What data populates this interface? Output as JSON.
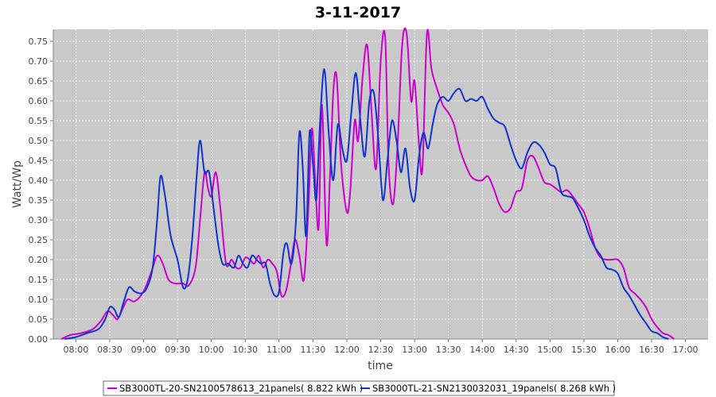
{
  "chart_data": {
    "type": "line",
    "title": "3-11-2017",
    "xlabel": "time",
    "ylabel": "Watt/Wp",
    "ylim": [
      0,
      0.78
    ],
    "yticks": [
      "0.00",
      "0.05",
      "0.10",
      "0.15",
      "0.20",
      "0.25",
      "0.30",
      "0.35",
      "0.40",
      "0.45",
      "0.50",
      "0.55",
      "0.60",
      "0.65",
      "0.70",
      "0.75"
    ],
    "xticks": [
      "08:00",
      "08:30",
      "09:00",
      "09:30",
      "10:00",
      "10:30",
      "11:00",
      "11:30",
      "12:00",
      "12:30",
      "13:00",
      "13:30",
      "14:00",
      "14:30",
      "15:00",
      "15:30",
      "16:00",
      "16:30",
      "17:00"
    ],
    "grid": true,
    "legend_position": "bottom",
    "series": [
      {
        "name": "SB3000TL-20-SN2100578613_21panels( 8.822 kWh )",
        "color": "#cc00cc",
        "points": [
          [
            "07:47",
            0.0
          ],
          [
            "07:55",
            0.01
          ],
          [
            "08:05",
            0.015
          ],
          [
            "08:15",
            0.025
          ],
          [
            "08:22",
            0.045
          ],
          [
            "08:28",
            0.07
          ],
          [
            "08:33",
            0.06
          ],
          [
            "08:37",
            0.05
          ],
          [
            "08:42",
            0.08
          ],
          [
            "08:46",
            0.1
          ],
          [
            "08:52",
            0.095
          ],
          [
            "09:00",
            0.12
          ],
          [
            "09:07",
            0.17
          ],
          [
            "09:12",
            0.21
          ],
          [
            "09:17",
            0.19
          ],
          [
            "09:22",
            0.15
          ],
          [
            "09:28",
            0.14
          ],
          [
            "09:35",
            0.14
          ],
          [
            "09:40",
            0.135
          ],
          [
            "09:46",
            0.18
          ],
          [
            "09:50",
            0.3
          ],
          [
            "09:54",
            0.42
          ],
          [
            "09:57",
            0.38
          ],
          [
            "10:00",
            0.36
          ],
          [
            "10:04",
            0.42
          ],
          [
            "10:08",
            0.33
          ],
          [
            "10:13",
            0.19
          ],
          [
            "10:18",
            0.2
          ],
          [
            "10:22",
            0.18
          ],
          [
            "10:26",
            0.18
          ],
          [
            "10:30",
            0.205
          ],
          [
            "10:34",
            0.2
          ],
          [
            "10:38",
            0.19
          ],
          [
            "10:42",
            0.21
          ],
          [
            "10:46",
            0.18
          ],
          [
            "10:50",
            0.2
          ],
          [
            "10:54",
            0.19
          ],
          [
            "10:58",
            0.17
          ],
          [
            "11:02",
            0.11
          ],
          [
            "11:06",
            0.12
          ],
          [
            "11:10",
            0.18
          ],
          [
            "11:14",
            0.25
          ],
          [
            "11:18",
            0.21
          ],
          [
            "11:22",
            0.15
          ],
          [
            "11:26",
            0.33
          ],
          [
            "11:29",
            0.53
          ],
          [
            "11:32",
            0.4
          ],
          [
            "11:35",
            0.28
          ],
          [
            "11:38",
            0.59
          ],
          [
            "11:42",
            0.24
          ],
          [
            "11:45",
            0.4
          ],
          [
            "11:48",
            0.62
          ],
          [
            "11:51",
            0.66
          ],
          [
            "11:55",
            0.44
          ],
          [
            "12:00",
            0.32
          ],
          [
            "12:03",
            0.37
          ],
          [
            "12:07",
            0.55
          ],
          [
            "12:10",
            0.5
          ],
          [
            "12:14",
            0.66
          ],
          [
            "12:18",
            0.74
          ],
          [
            "12:22",
            0.57
          ],
          [
            "12:26",
            0.43
          ],
          [
            "12:30",
            0.7
          ],
          [
            "12:34",
            0.76
          ],
          [
            "12:37",
            0.44
          ],
          [
            "12:41",
            0.34
          ],
          [
            "12:45",
            0.49
          ],
          [
            "12:49",
            0.74
          ],
          [
            "12:53",
            0.77
          ],
          [
            "12:57",
            0.6
          ],
          [
            "13:00",
            0.65
          ],
          [
            "13:04",
            0.49
          ],
          [
            "13:07",
            0.43
          ],
          [
            "13:11",
            0.77
          ],
          [
            "13:15",
            0.68
          ],
          [
            "13:20",
            0.63
          ],
          [
            "13:25",
            0.59
          ],
          [
            "13:30",
            0.57
          ],
          [
            "13:35",
            0.54
          ],
          [
            "13:40",
            0.48
          ],
          [
            "13:45",
            0.44
          ],
          [
            "13:50",
            0.41
          ],
          [
            "13:55",
            0.4
          ],
          [
            "14:00",
            0.4
          ],
          [
            "14:05",
            0.41
          ],
          [
            "14:10",
            0.38
          ],
          [
            "14:15",
            0.34
          ],
          [
            "14:20",
            0.32
          ],
          [
            "14:25",
            0.33
          ],
          [
            "14:30",
            0.37
          ],
          [
            "14:35",
            0.38
          ],
          [
            "14:40",
            0.45
          ],
          [
            "14:45",
            0.46
          ],
          [
            "14:50",
            0.43
          ],
          [
            "14:55",
            0.395
          ],
          [
            "15:00",
            0.39
          ],
          [
            "15:05",
            0.38
          ],
          [
            "15:10",
            0.37
          ],
          [
            "15:15",
            0.375
          ],
          [
            "15:20",
            0.36
          ],
          [
            "15:25",
            0.34
          ],
          [
            "15:30",
            0.32
          ],
          [
            "15:35",
            0.28
          ],
          [
            "15:40",
            0.23
          ],
          [
            "15:45",
            0.205
          ],
          [
            "15:50",
            0.2
          ],
          [
            "15:55",
            0.2
          ],
          [
            "16:00",
            0.2
          ],
          [
            "16:05",
            0.18
          ],
          [
            "16:10",
            0.13
          ],
          [
            "16:15",
            0.115
          ],
          [
            "16:20",
            0.1
          ],
          [
            "16:25",
            0.08
          ],
          [
            "16:30",
            0.05
          ],
          [
            "16:35",
            0.03
          ],
          [
            "16:40",
            0.015
          ],
          [
            "16:45",
            0.01
          ],
          [
            "16:50",
            0.0
          ]
        ]
      },
      {
        "name": "SB3000TL-21-SN2130032031_19panels( 8.268 kWh )",
        "color": "#1133cc",
        "points": [
          [
            "07:50",
            0.0
          ],
          [
            "08:00",
            0.005
          ],
          [
            "08:10",
            0.015
          ],
          [
            "08:20",
            0.025
          ],
          [
            "08:26",
            0.05
          ],
          [
            "08:30",
            0.08
          ],
          [
            "08:34",
            0.075
          ],
          [
            "08:38",
            0.055
          ],
          [
            "08:42",
            0.09
          ],
          [
            "08:47",
            0.13
          ],
          [
            "08:52",
            0.12
          ],
          [
            "08:58",
            0.115
          ],
          [
            "09:03",
            0.13
          ],
          [
            "09:08",
            0.18
          ],
          [
            "09:12",
            0.3
          ],
          [
            "09:15",
            0.41
          ],
          [
            "09:19",
            0.36
          ],
          [
            "09:24",
            0.26
          ],
          [
            "09:30",
            0.2
          ],
          [
            "09:35",
            0.13
          ],
          [
            "09:39",
            0.15
          ],
          [
            "09:43",
            0.25
          ],
          [
            "09:47",
            0.41
          ],
          [
            "09:50",
            0.5
          ],
          [
            "09:54",
            0.42
          ],
          [
            "09:58",
            0.42
          ],
          [
            "10:02",
            0.33
          ],
          [
            "10:06",
            0.24
          ],
          [
            "10:10",
            0.19
          ],
          [
            "10:15",
            0.19
          ],
          [
            "10:20",
            0.18
          ],
          [
            "10:24",
            0.21
          ],
          [
            "10:28",
            0.19
          ],
          [
            "10:32",
            0.18
          ],
          [
            "10:36",
            0.21
          ],
          [
            "10:40",
            0.2
          ],
          [
            "10:44",
            0.19
          ],
          [
            "10:48",
            0.19
          ],
          [
            "10:52",
            0.14
          ],
          [
            "10:56",
            0.11
          ],
          [
            "11:00",
            0.12
          ],
          [
            "11:04",
            0.22
          ],
          [
            "11:07",
            0.24
          ],
          [
            "11:11",
            0.19
          ],
          [
            "11:15",
            0.3
          ],
          [
            "11:18",
            0.52
          ],
          [
            "11:21",
            0.43
          ],
          [
            "11:24",
            0.26
          ],
          [
            "11:27",
            0.52
          ],
          [
            "11:30",
            0.44
          ],
          [
            "11:33",
            0.35
          ],
          [
            "11:36",
            0.53
          ],
          [
            "11:40",
            0.68
          ],
          [
            "11:44",
            0.52
          ],
          [
            "11:48",
            0.4
          ],
          [
            "11:52",
            0.54
          ],
          [
            "11:56",
            0.48
          ],
          [
            "12:00",
            0.45
          ],
          [
            "12:04",
            0.57
          ],
          [
            "12:08",
            0.67
          ],
          [
            "12:12",
            0.55
          ],
          [
            "12:16",
            0.46
          ],
          [
            "12:20",
            0.6
          ],
          [
            "12:24",
            0.62
          ],
          [
            "12:28",
            0.5
          ],
          [
            "12:32",
            0.35
          ],
          [
            "12:36",
            0.45
          ],
          [
            "12:40",
            0.55
          ],
          [
            "12:44",
            0.5
          ],
          [
            "12:48",
            0.42
          ],
          [
            "12:52",
            0.48
          ],
          [
            "12:56",
            0.38
          ],
          [
            "13:00",
            0.35
          ],
          [
            "13:04",
            0.46
          ],
          [
            "13:08",
            0.52
          ],
          [
            "13:12",
            0.48
          ],
          [
            "13:16",
            0.54
          ],
          [
            "13:20",
            0.59
          ],
          [
            "13:25",
            0.61
          ],
          [
            "13:30",
            0.6
          ],
          [
            "13:35",
            0.62
          ],
          [
            "13:40",
            0.63
          ],
          [
            "13:45",
            0.6
          ],
          [
            "13:50",
            0.605
          ],
          [
            "13:55",
            0.6
          ],
          [
            "14:00",
            0.61
          ],
          [
            "14:05",
            0.58
          ],
          [
            "14:10",
            0.555
          ],
          [
            "14:15",
            0.545
          ],
          [
            "14:20",
            0.535
          ],
          [
            "14:25",
            0.49
          ],
          [
            "14:30",
            0.45
          ],
          [
            "14:35",
            0.43
          ],
          [
            "14:40",
            0.47
          ],
          [
            "14:45",
            0.495
          ],
          [
            "14:50",
            0.49
          ],
          [
            "14:55",
            0.47
          ],
          [
            "15:00",
            0.44
          ],
          [
            "15:05",
            0.43
          ],
          [
            "15:10",
            0.37
          ],
          [
            "15:15",
            0.36
          ],
          [
            "15:20",
            0.355
          ],
          [
            "15:25",
            0.33
          ],
          [
            "15:30",
            0.3
          ],
          [
            "15:35",
            0.26
          ],
          [
            "15:40",
            0.23
          ],
          [
            "15:45",
            0.21
          ],
          [
            "15:50",
            0.18
          ],
          [
            "15:55",
            0.175
          ],
          [
            "16:00",
            0.165
          ],
          [
            "16:05",
            0.13
          ],
          [
            "16:10",
            0.11
          ],
          [
            "16:15",
            0.085
          ],
          [
            "16:20",
            0.06
          ],
          [
            "16:25",
            0.04
          ],
          [
            "16:30",
            0.02
          ],
          [
            "16:35",
            0.015
          ],
          [
            "16:40",
            0.005
          ],
          [
            "16:45",
            0.0
          ]
        ]
      }
    ]
  }
}
